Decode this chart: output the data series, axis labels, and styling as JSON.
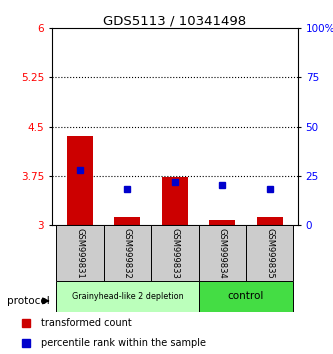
{
  "title": "GDS5113 / 10341498",
  "samples": [
    "GSM999831",
    "GSM999832",
    "GSM999833",
    "GSM999834",
    "GSM999835"
  ],
  "transformed_counts": [
    4.35,
    3.12,
    3.73,
    3.08,
    3.12
  ],
  "percentile_ranks": [
    28.0,
    18.0,
    22.0,
    20.0,
    18.0
  ],
  "y_min": 3.0,
  "y_max": 6.0,
  "y_ticks_left": [
    3,
    3.75,
    4.5,
    5.25,
    6
  ],
  "y_ticks_right_pct": [
    0,
    25,
    50,
    75,
    100
  ],
  "bar_color": "#cc0000",
  "dot_color": "#0000cc",
  "group1_label": "Grainyhead-like 2 depletion",
  "group2_label": "control",
  "group1_bg": "#bbffbb",
  "group2_bg": "#44dd44",
  "sample_bg": "#cccccc",
  "legend_red": "transformed count",
  "legend_blue": "percentile rank within the sample",
  "protocol_label": "protocol"
}
